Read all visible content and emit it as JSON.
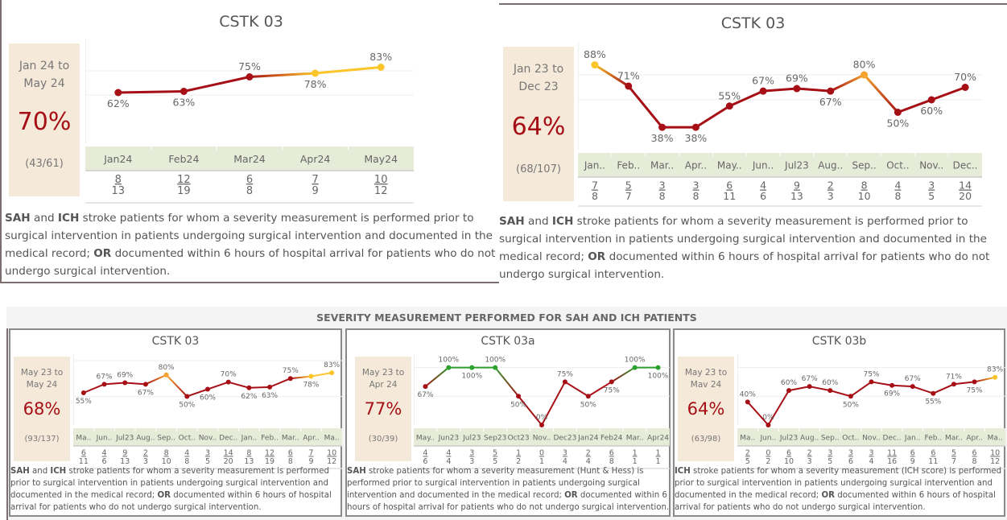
{
  "colors": {
    "low": "#a50f15",
    "mid": "#f6a42c",
    "high": "#fcc52a",
    "good": "#2ca02c",
    "kpi_bg": "#f5e9d9",
    "band_bg": "#e7ecd9"
  },
  "top_left": {
    "title": "CSTK 03",
    "kpi_range_line1": "Jan 24 to",
    "kpi_range_line2": "May 24",
    "kpi_pct": "70%",
    "kpi_frac": "(43/61)",
    "desc": [
      {
        "b": "SAH"
      },
      {
        "t": " and "
      },
      {
        "b": "ICH"
      },
      {
        "t": " stroke patients for whom a severity measurement is performed prior to surgical intervention in patients undergoing surgical intervention and documented in the medical record; "
      },
      {
        "b": "OR"
      },
      {
        "t": " documented within 6 hours of hospital arrival for patients who do not undergo surgical intervention."
      }
    ]
  },
  "top_right": {
    "title": "CSTK 03",
    "kpi_range_line1": "Jan 23 to",
    "kpi_range_line2": "Dec 23",
    "kpi_pct": "64%",
    "kpi_frac": "(68/107)",
    "desc": [
      {
        "b": "SAH"
      },
      {
        "t": " and "
      },
      {
        "b": "ICH"
      },
      {
        "t": " stroke patients for whom a severity measurement is performed prior to surgical intervention in patients undergoing surgical intervention and documented in the medical record; "
      },
      {
        "b": "OR"
      },
      {
        "t": " documented within 6 hours of hospital arrival for patients who do not undergo surgical intervention."
      }
    ]
  },
  "dashboard": {
    "header": "SEVERITY MEASUREMENT PERFORMED FOR SAH AND ICH PATIENTS",
    "panels": [
      {
        "title": "CSTK 03",
        "kpi_range_line1": "May 23 to",
        "kpi_range_line2": "May 24",
        "kpi_pct": "68%",
        "kpi_frac": "(93/137)",
        "desc": [
          {
            "b": "SAH"
          },
          {
            "t": " and "
          },
          {
            "b": "ICH"
          },
          {
            "t": " stroke patients for whom a severity measurement is performed prior to surgical intervention in patients undergoing surgical intervention and documented in the medical record; "
          },
          {
            "b": "OR"
          },
          {
            "t": " documented within 6 hours of hospital arrival for patients who do not undergo surgical intervention."
          }
        ]
      },
      {
        "title": "CSTK 03a",
        "kpi_range_line1": "May 23 to",
        "kpi_range_line2": "Apr 24",
        "kpi_pct": "77%",
        "kpi_frac": "(30/39)",
        "desc": [
          {
            "b": "SAH"
          },
          {
            "t": " stroke patients for whom a severity measurement (Hunt & Hess) is performed prior to surgical intervention in patients undergoing surgical intervention and documented in the medical record; "
          },
          {
            "b": "OR"
          },
          {
            "t": " documented within 6 hours of hospital arrival for patients who do not undergo surgical intervention."
          }
        ]
      },
      {
        "title": "CSTK 03b",
        "kpi_range_line1": "May 23 to",
        "kpi_range_line2": "Mav 24",
        "kpi_pct": "64%",
        "kpi_frac": "(63/98)",
        "desc": [
          {
            "b": "ICH"
          },
          {
            "t": " stroke patients for whom a severity measurement (ICH score) is performed prior to surgical intervention in patients undergoing surgical intervention and documented in the medical record; "
          },
          {
            "b": "OR"
          },
          {
            "t": " documented within 6 hours of hospital arrival for patients who do not undergo surgical intervention."
          }
        ]
      }
    ]
  },
  "chart_data": [
    {
      "id": "top_left",
      "type": "line",
      "title": "CSTK 03",
      "categories": [
        "Jan24",
        "Feb24",
        "Mar24",
        "Apr24",
        "May24"
      ],
      "values": [
        62,
        63,
        75,
        78,
        83
      ],
      "labels": [
        "62%",
        "63%",
        "75%",
        "78%",
        "83%"
      ],
      "label_pos": [
        "below",
        "below",
        "above",
        "below",
        "above"
      ],
      "numerators": [
        8,
        12,
        6,
        7,
        10
      ],
      "denominators": [
        13,
        19,
        8,
        9,
        12
      ],
      "ylim": [
        0,
        100
      ],
      "gridlines": [
        60,
        80
      ]
    },
    {
      "id": "top_right",
      "type": "line",
      "title": "CSTK 03",
      "categories": [
        "Jan..",
        "Feb..",
        "Mar..",
        "Apr..",
        "May..",
        "Jun..",
        "Jul23",
        "Aug..",
        "Sep..",
        "Oct..",
        "Nov..",
        "Dec.."
      ],
      "values": [
        88,
        71,
        38,
        38,
        55,
        67,
        69,
        67,
        80,
        50,
        60,
        70
      ],
      "labels": [
        "88%",
        "71%",
        "38%",
        "38%",
        "55%",
        "67%",
        "69%",
        "67%",
        "80%",
        "50%",
        "60%",
        "70%"
      ],
      "label_pos": [
        "above",
        "above",
        "below",
        "below",
        "above",
        "above",
        "above",
        "below",
        "above",
        "below",
        "below",
        "above"
      ],
      "numerators": [
        7,
        5,
        3,
        3,
        6,
        4,
        9,
        2,
        8,
        4,
        3,
        14
      ],
      "denominators": [
        8,
        7,
        8,
        8,
        11,
        6,
        13,
        3,
        10,
        8,
        5,
        20
      ],
      "ylim": [
        0,
        100
      ],
      "gridlines": [
        60,
        80
      ]
    },
    {
      "id": "panel_0",
      "type": "line",
      "title": "CSTK 03",
      "categories": [
        "Ma..",
        "Jun..",
        "Jul23",
        "Aug..",
        "Sep..",
        "Oct..",
        "Nov..",
        "Dec..",
        "Jan..",
        "Feb..",
        "Mar..",
        "Apr..",
        "Ma.."
      ],
      "values": [
        55,
        67,
        69,
        67,
        80,
        50,
        60,
        70,
        62,
        63,
        75,
        78,
        83
      ],
      "labels": [
        "55%",
        "67%",
        "69%",
        "67%",
        "80%",
        "50%",
        "60%",
        "70%",
        "62%",
        "63%",
        "75%",
        "78%",
        "83%"
      ],
      "label_pos": [
        "below",
        "above",
        "above",
        "below",
        "above",
        "below",
        "below",
        "above",
        "below",
        "below",
        "above",
        "below",
        "above"
      ],
      "numerators": [
        6,
        4,
        9,
        2,
        8,
        4,
        3,
        14,
        8,
        12,
        6,
        7,
        10
      ],
      "denominators": [
        11,
        6,
        13,
        3,
        10,
        8,
        5,
        20,
        13,
        19,
        8,
        9,
        12
      ],
      "ylim": [
        0,
        100
      ],
      "gridlines": [
        50,
        100
      ]
    },
    {
      "id": "panel_1",
      "type": "line",
      "title": "CSTK 03a",
      "categories": [
        "May..",
        "Jun23",
        "Jul23",
        "Sep23",
        "Oct23",
        "Nov..",
        "Dec23",
        "Jan24",
        "Feb24",
        "Mar..",
        "Apr24"
      ],
      "values": [
        67,
        100,
        100,
        100,
        50,
        0,
        75,
        50,
        75,
        100,
        100
      ],
      "labels": [
        "67%",
        "100%",
        "100%",
        "100%",
        "50%",
        "0%",
        "75%",
        "50%",
        "75%",
        "100%",
        "100%"
      ],
      "label_pos": [
        "below",
        "above",
        "below",
        "above",
        "below",
        "above",
        "above",
        "below",
        "below",
        "above",
        "below"
      ],
      "numerators": [
        4,
        4,
        3,
        5,
        1,
        0,
        3,
        2,
        6,
        1,
        1
      ],
      "denominators": [
        6,
        4,
        3,
        5,
        2,
        1,
        4,
        4,
        8,
        1,
        1
      ],
      "ylim": [
        0,
        100
      ],
      "gridlines": [
        50,
        100
      ]
    },
    {
      "id": "panel_2",
      "type": "line",
      "title": "CSTK 03b",
      "categories": [
        "Ma..",
        "Jun..",
        "Jul23",
        "Aug..",
        "Sep..",
        "Oct..",
        "Nov..",
        "Dec..",
        "Jan..",
        "Feb..",
        "Mar..",
        "Apr..",
        "Ma.."
      ],
      "values": [
        40,
        0,
        60,
        67,
        60,
        50,
        75,
        69,
        67,
        55,
        71,
        75,
        83
      ],
      "labels": [
        "40%",
        "0%",
        "60%",
        "67%",
        "60%",
        "50%",
        "75%",
        "69%",
        "67%",
        "55%",
        "71%",
        "75%",
        "83%"
      ],
      "label_pos": [
        "above",
        "above",
        "above",
        "above",
        "above",
        "below",
        "above",
        "below",
        "above",
        "below",
        "above",
        "below",
        "above"
      ],
      "numerators": [
        2,
        0,
        6,
        2,
        3,
        3,
        3,
        11,
        6,
        6,
        5,
        6,
        10
      ],
      "denominators": [
        5,
        2,
        10,
        3,
        5,
        6,
        4,
        16,
        9,
        11,
        7,
        8,
        12
      ],
      "ylim": [
        0,
        100
      ],
      "gridlines": [
        50,
        100
      ]
    }
  ]
}
